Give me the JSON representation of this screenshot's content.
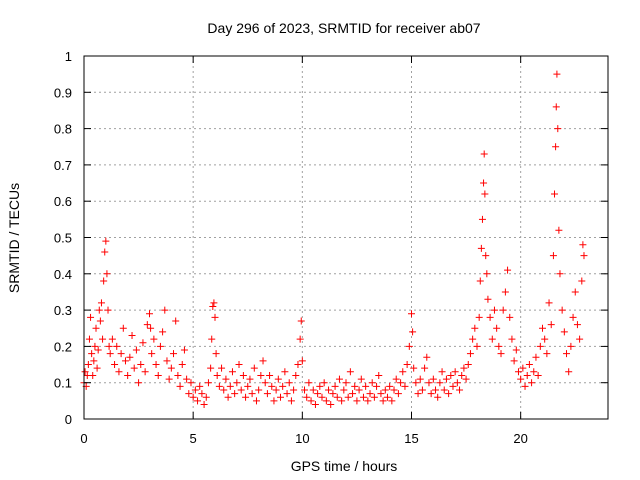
{
  "chart_data": {
    "type": "scatter",
    "title": "Day 296 of 2023, SRMTID for receiver ab07",
    "xlabel": "GPS time / hours",
    "ylabel": "SRMTID / TECUs",
    "xlim": [
      0,
      24
    ],
    "ylim": [
      0,
      1
    ],
    "grid": true,
    "marker": "+",
    "color": "#ff0000",
    "x_ticks": [
      0,
      5,
      10,
      15,
      20
    ],
    "x_tick_labels": [
      "0",
      "5",
      "10",
      "15",
      "20"
    ],
    "y_ticks": [
      0,
      0.1,
      0.2,
      0.3,
      0.4,
      0.5,
      0.6,
      0.7,
      0.8,
      0.9,
      1
    ],
    "y_tick_labels": [
      "0",
      "0.1",
      "0.2",
      "0.3",
      "0.4",
      "0.5",
      "0.6",
      "0.7",
      "0.8",
      "0.9",
      "1"
    ],
    "series": [
      {
        "name": "SRMTID",
        "points": [
          [
            0.0,
            0.1
          ],
          [
            0.05,
            0.13
          ],
          [
            0.1,
            0.09
          ],
          [
            0.15,
            0.12
          ],
          [
            0.2,
            0.15
          ],
          [
            0.25,
            0.22
          ],
          [
            0.3,
            0.28
          ],
          [
            0.35,
            0.18
          ],
          [
            0.4,
            0.12
          ],
          [
            0.45,
            0.16
          ],
          [
            0.5,
            0.2
          ],
          [
            0.55,
            0.25
          ],
          [
            0.6,
            0.14
          ],
          [
            0.65,
            0.19
          ],
          [
            0.7,
            0.3
          ],
          [
            0.75,
            0.27
          ],
          [
            0.8,
            0.32
          ],
          [
            0.85,
            0.22
          ],
          [
            0.9,
            0.38
          ],
          [
            0.95,
            0.46
          ],
          [
            1.0,
            0.49
          ],
          [
            1.05,
            0.4
          ],
          [
            1.1,
            0.3
          ],
          [
            1.15,
            0.2
          ],
          [
            1.2,
            0.18
          ],
          [
            1.3,
            0.22
          ],
          [
            1.4,
            0.15
          ],
          [
            1.5,
            0.2
          ],
          [
            1.6,
            0.13
          ],
          [
            1.7,
            0.18
          ],
          [
            1.8,
            0.25
          ],
          [
            1.9,
            0.16
          ],
          [
            2.0,
            0.12
          ],
          [
            2.1,
            0.17
          ],
          [
            2.2,
            0.23
          ],
          [
            2.3,
            0.14
          ],
          [
            2.4,
            0.19
          ],
          [
            2.5,
            0.1
          ],
          [
            2.6,
            0.15
          ],
          [
            2.7,
            0.21
          ],
          [
            2.8,
            0.13
          ],
          [
            2.9,
            0.26
          ],
          [
            3.0,
            0.29
          ],
          [
            3.05,
            0.25
          ],
          [
            3.1,
            0.18
          ],
          [
            3.2,
            0.22
          ],
          [
            3.3,
            0.15
          ],
          [
            3.4,
            0.12
          ],
          [
            3.5,
            0.2
          ],
          [
            3.6,
            0.24
          ],
          [
            3.7,
            0.3
          ],
          [
            3.8,
            0.16
          ],
          [
            3.9,
            0.11
          ],
          [
            4.0,
            0.14
          ],
          [
            4.1,
            0.18
          ],
          [
            4.2,
            0.27
          ],
          [
            4.3,
            0.12
          ],
          [
            4.4,
            0.09
          ],
          [
            4.5,
            0.15
          ],
          [
            4.6,
            0.19
          ],
          [
            4.7,
            0.11
          ],
          [
            4.8,
            0.07
          ],
          [
            4.9,
            0.1
          ],
          [
            5.0,
            0.06
          ],
          [
            5.1,
            0.08
          ],
          [
            5.2,
            0.05
          ],
          [
            5.3,
            0.09
          ],
          [
            5.4,
            0.07
          ],
          [
            5.5,
            0.04
          ],
          [
            5.6,
            0.06
          ],
          [
            5.7,
            0.1
          ],
          [
            5.8,
            0.14
          ],
          [
            5.85,
            0.22
          ],
          [
            5.9,
            0.31
          ],
          [
            5.95,
            0.32
          ],
          [
            6.0,
            0.28
          ],
          [
            6.05,
            0.18
          ],
          [
            6.1,
            0.12
          ],
          [
            6.2,
            0.09
          ],
          [
            6.3,
            0.14
          ],
          [
            6.4,
            0.08
          ],
          [
            6.5,
            0.11
          ],
          [
            6.6,
            0.06
          ],
          [
            6.7,
            0.09
          ],
          [
            6.8,
            0.13
          ],
          [
            6.9,
            0.07
          ],
          [
            7.0,
            0.1
          ],
          [
            7.1,
            0.15
          ],
          [
            7.2,
            0.08
          ],
          [
            7.3,
            0.12
          ],
          [
            7.4,
            0.06
          ],
          [
            7.5,
            0.09
          ],
          [
            7.6,
            0.11
          ],
          [
            7.7,
            0.07
          ],
          [
            7.8,
            0.14
          ],
          [
            7.9,
            0.05
          ],
          [
            8.0,
            0.08
          ],
          [
            8.1,
            0.12
          ],
          [
            8.2,
            0.16
          ],
          [
            8.3,
            0.1
          ],
          [
            8.4,
            0.07
          ],
          [
            8.5,
            0.12
          ],
          [
            8.6,
            0.09
          ],
          [
            8.7,
            0.05
          ],
          [
            8.8,
            0.08
          ],
          [
            8.9,
            0.11
          ],
          [
            9.0,
            0.06
          ],
          [
            9.1,
            0.09
          ],
          [
            9.2,
            0.13
          ],
          [
            9.3,
            0.07
          ],
          [
            9.4,
            0.1
          ],
          [
            9.5,
            0.05
          ],
          [
            9.6,
            0.08
          ],
          [
            9.7,
            0.12
          ],
          [
            9.8,
            0.15
          ],
          [
            9.9,
            0.22
          ],
          [
            9.95,
            0.27
          ],
          [
            10.0,
            0.16
          ],
          [
            10.1,
            0.08
          ],
          [
            10.2,
            0.06
          ],
          [
            10.3,
            0.1
          ],
          [
            10.4,
            0.05
          ],
          [
            10.5,
            0.08
          ],
          [
            10.6,
            0.04
          ],
          [
            10.7,
            0.07
          ],
          [
            10.8,
            0.09
          ],
          [
            10.9,
            0.06
          ],
          [
            11.0,
            0.1
          ],
          [
            11.1,
            0.05
          ],
          [
            11.2,
            0.08
          ],
          [
            11.3,
            0.04
          ],
          [
            11.4,
            0.07
          ],
          [
            11.5,
            0.09
          ],
          [
            11.6,
            0.06
          ],
          [
            11.7,
            0.11
          ],
          [
            11.8,
            0.05
          ],
          [
            11.9,
            0.08
          ],
          [
            12.0,
            0.1
          ],
          [
            12.1,
            0.06
          ],
          [
            12.2,
            0.13
          ],
          [
            12.3,
            0.07
          ],
          [
            12.4,
            0.09
          ],
          [
            12.5,
            0.05
          ],
          [
            12.6,
            0.08
          ],
          [
            12.7,
            0.11
          ],
          [
            12.8,
            0.06
          ],
          [
            12.9,
            0.09
          ],
          [
            13.0,
            0.05
          ],
          [
            13.1,
            0.07
          ],
          [
            13.2,
            0.1
          ],
          [
            13.3,
            0.06
          ],
          [
            13.4,
            0.09
          ],
          [
            13.5,
            0.12
          ],
          [
            13.6,
            0.07
          ],
          [
            13.7,
            0.05
          ],
          [
            13.8,
            0.08
          ],
          [
            13.9,
            0.06
          ],
          [
            14.0,
            0.09
          ],
          [
            14.1,
            0.05
          ],
          [
            14.2,
            0.08
          ],
          [
            14.3,
            0.11
          ],
          [
            14.4,
            0.07
          ],
          [
            14.5,
            0.1
          ],
          [
            14.6,
            0.13
          ],
          [
            14.7,
            0.09
          ],
          [
            14.8,
            0.15
          ],
          [
            14.9,
            0.2
          ],
          [
            15.0,
            0.29
          ],
          [
            15.05,
            0.24
          ],
          [
            15.1,
            0.14
          ],
          [
            15.2,
            0.1
          ],
          [
            15.3,
            0.07
          ],
          [
            15.4,
            0.11
          ],
          [
            15.5,
            0.08
          ],
          [
            15.6,
            0.14
          ],
          [
            15.7,
            0.17
          ],
          [
            15.8,
            0.1
          ],
          [
            15.9,
            0.07
          ],
          [
            16.0,
            0.11
          ],
          [
            16.1,
            0.08
          ],
          [
            16.2,
            0.06
          ],
          [
            16.3,
            0.1
          ],
          [
            16.4,
            0.13
          ],
          [
            16.5,
            0.08
          ],
          [
            16.6,
            0.11
          ],
          [
            16.7,
            0.07
          ],
          [
            16.8,
            0.12
          ],
          [
            16.9,
            0.09
          ],
          [
            17.0,
            0.13
          ],
          [
            17.1,
            0.1
          ],
          [
            17.2,
            0.08
          ],
          [
            17.3,
            0.12
          ],
          [
            17.4,
            0.14
          ],
          [
            17.5,
            0.11
          ],
          [
            17.6,
            0.15
          ],
          [
            17.7,
            0.18
          ],
          [
            17.8,
            0.22
          ],
          [
            17.9,
            0.25
          ],
          [
            18.0,
            0.2
          ],
          [
            18.1,
            0.28
          ],
          [
            18.15,
            0.38
          ],
          [
            18.2,
            0.47
          ],
          [
            18.25,
            0.55
          ],
          [
            18.3,
            0.65
          ],
          [
            18.33,
            0.73
          ],
          [
            18.36,
            0.62
          ],
          [
            18.4,
            0.45
          ],
          [
            18.45,
            0.4
          ],
          [
            18.5,
            0.33
          ],
          [
            18.6,
            0.28
          ],
          [
            18.7,
            0.22
          ],
          [
            18.8,
            0.3
          ],
          [
            18.9,
            0.25
          ],
          [
            19.0,
            0.2
          ],
          [
            19.1,
            0.18
          ],
          [
            19.2,
            0.3
          ],
          [
            19.3,
            0.35
          ],
          [
            19.4,
            0.41
          ],
          [
            19.5,
            0.28
          ],
          [
            19.6,
            0.22
          ],
          [
            19.7,
            0.16
          ],
          [
            19.8,
            0.19
          ],
          [
            19.9,
            0.13
          ],
          [
            20.0,
            0.11
          ],
          [
            20.1,
            0.14
          ],
          [
            20.2,
            0.09
          ],
          [
            20.3,
            0.12
          ],
          [
            20.4,
            0.15
          ],
          [
            20.5,
            0.1
          ],
          [
            20.6,
            0.13
          ],
          [
            20.7,
            0.17
          ],
          [
            20.8,
            0.12
          ],
          [
            20.9,
            0.2
          ],
          [
            21.0,
            0.25
          ],
          [
            21.1,
            0.22
          ],
          [
            21.2,
            0.18
          ],
          [
            21.3,
            0.32
          ],
          [
            21.4,
            0.26
          ],
          [
            21.5,
            0.45
          ],
          [
            21.55,
            0.62
          ],
          [
            21.6,
            0.75
          ],
          [
            21.63,
            0.86
          ],
          [
            21.66,
            0.95
          ],
          [
            21.7,
            0.8
          ],
          [
            21.75,
            0.52
          ],
          [
            21.8,
            0.4
          ],
          [
            21.9,
            0.3
          ],
          [
            22.0,
            0.24
          ],
          [
            22.1,
            0.18
          ],
          [
            22.2,
            0.13
          ],
          [
            22.3,
            0.2
          ],
          [
            22.4,
            0.28
          ],
          [
            22.5,
            0.35
          ],
          [
            22.6,
            0.26
          ],
          [
            22.7,
            0.22
          ],
          [
            22.8,
            0.38
          ],
          [
            22.85,
            0.48
          ],
          [
            22.9,
            0.45
          ]
        ]
      }
    ]
  }
}
